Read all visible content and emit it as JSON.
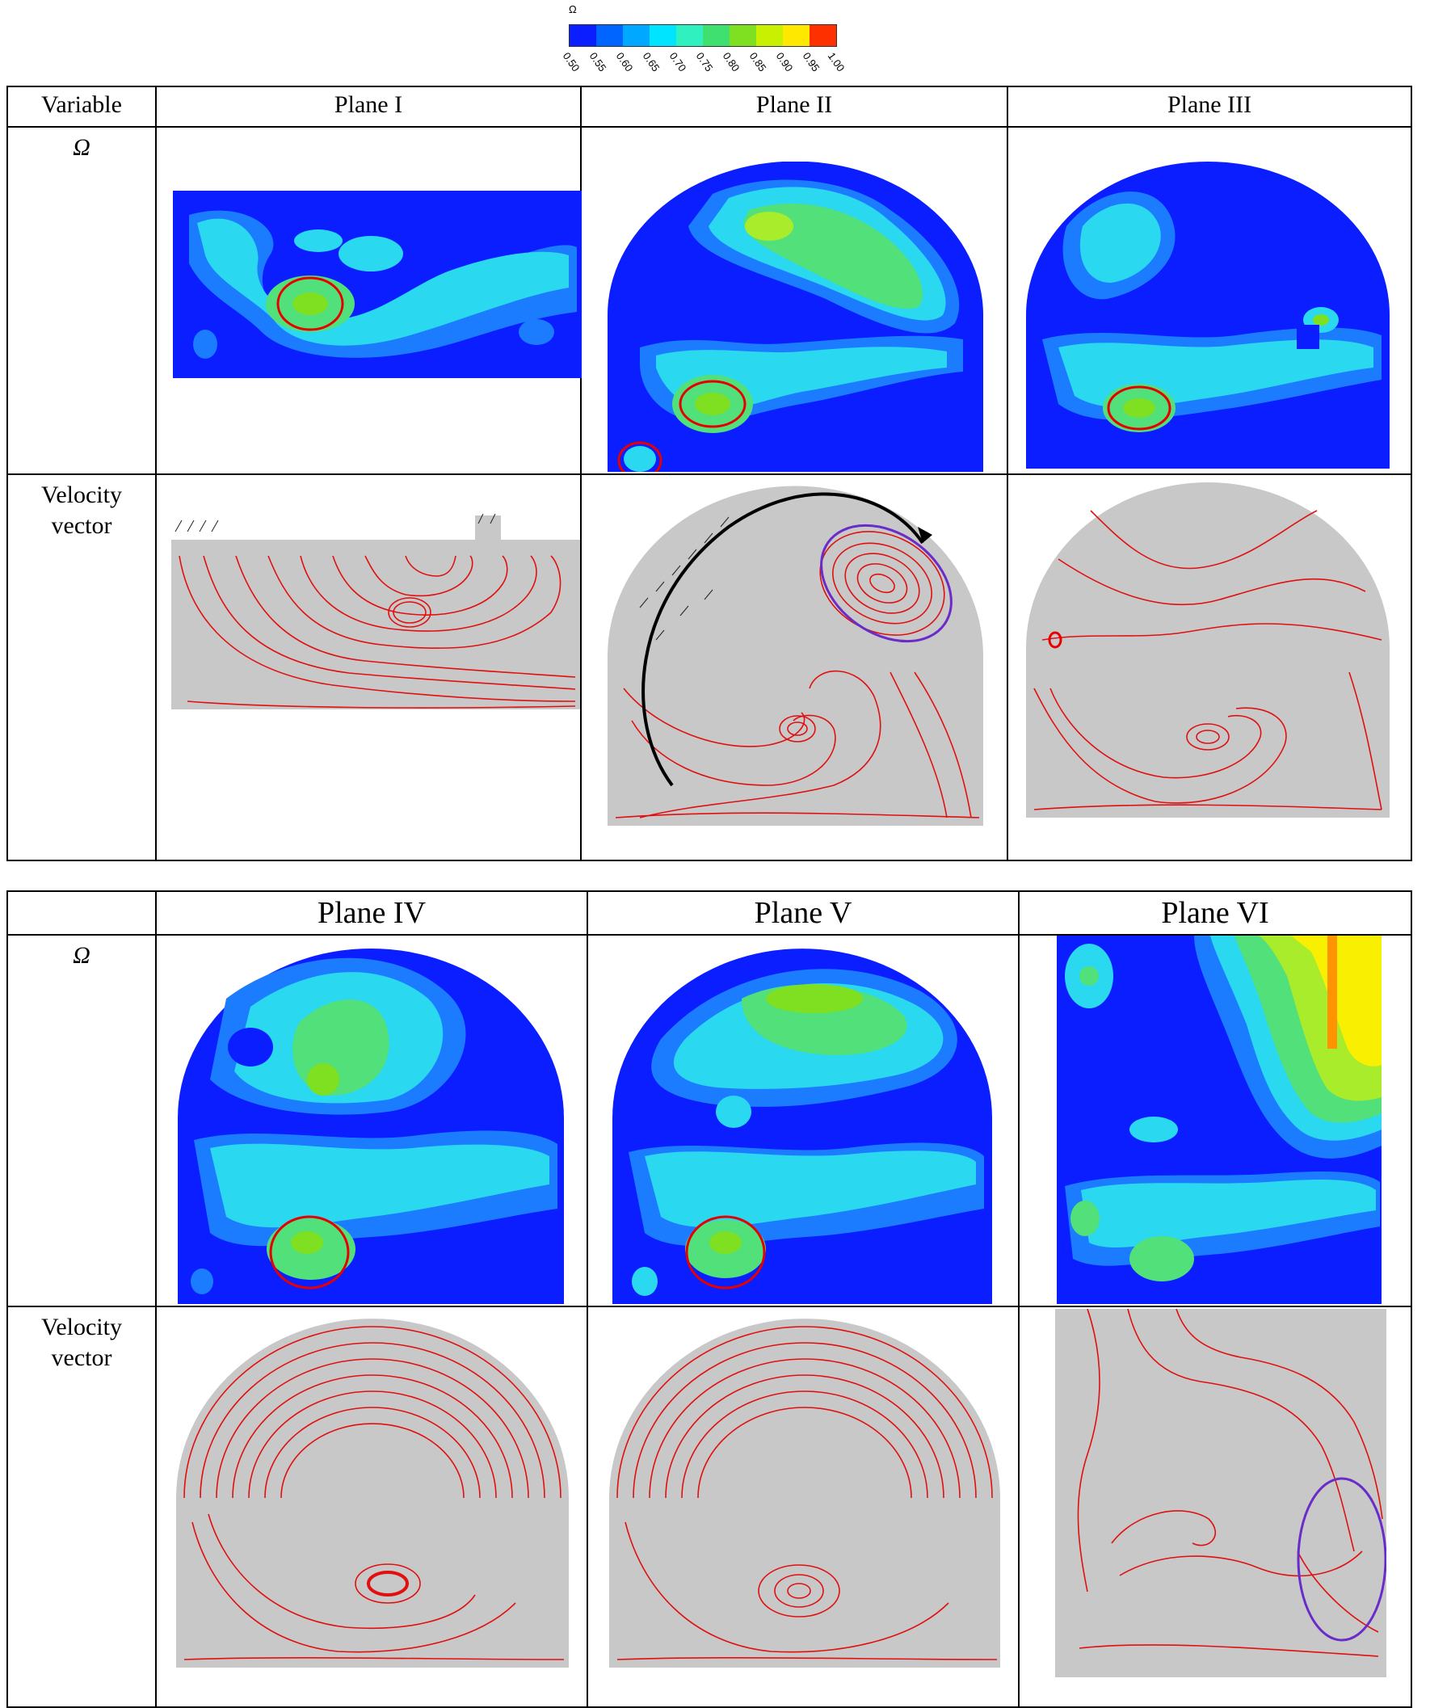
{
  "colorbar": {
    "title": "Ω",
    "ticks": [
      "0.50",
      "0.55",
      "0.60",
      "0.65",
      "0.70",
      "0.75",
      "0.80",
      "0.85",
      "0.90",
      "0.95",
      "1.00"
    ],
    "colors": [
      "#0a1eff",
      "#0064ff",
      "#00a8ff",
      "#00e4ff",
      "#30f0c0",
      "#40e070",
      "#7ee020",
      "#c8f000",
      "#ffe800",
      "#ffa000",
      "#ff3000"
    ]
  },
  "table_top": {
    "header": [
      "Variable",
      "Plane I",
      "Plane II",
      "Plane III"
    ],
    "rows": [
      {
        "label": "Ω"
      },
      {
        "label_line1": "Velocity",
        "label_line2": "vector"
      }
    ]
  },
  "table_bottom": {
    "header": [
      "",
      "Plane IV",
      "Plane V",
      "Plane VI"
    ],
    "rows": [
      {
        "label": "Ω"
      },
      {
        "label_line1": "Velocity",
        "label_line2": "vector"
      }
    ]
  },
  "palette": {
    "deep": "#0a1eff",
    "mid": "#1c7cff",
    "light": "#2ad8f0",
    "green": "#52e07a",
    "lime": "#a8ec2c",
    "yellow": "#f8f000",
    "orange": "#ff9400",
    "marker_red": "#e60000",
    "marker_purple": "#6a2cc8",
    "vector_bg": "#c8c8c8",
    "streamline": "#e01010",
    "arrow": "#222222"
  }
}
